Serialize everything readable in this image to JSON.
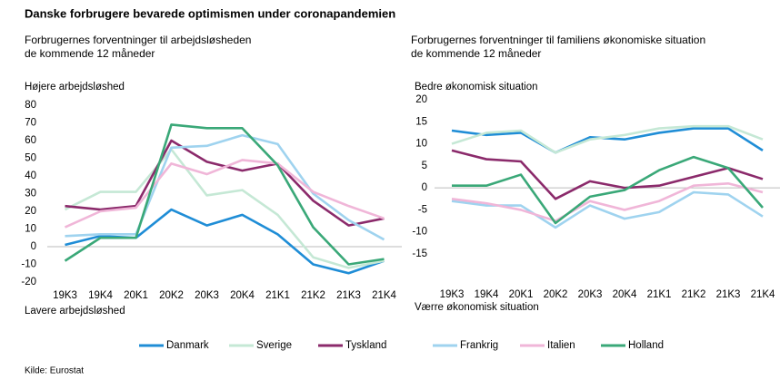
{
  "title": "Danske forbrugere bevarede optimismen under coronapandemien",
  "source": "Kilde: Eurostat",
  "chart_data": [
    {
      "type": "line",
      "title": [
        "Forbrugernes forventninger til arbejdsløsheden",
        "de kommende 12 måneder"
      ],
      "annotations": [
        "Højere arbejdsløshed",
        "Lavere arbejdsløshed"
      ],
      "categories": [
        "19K3",
        "19K4",
        "20K1",
        "20K2",
        "20K3",
        "20K4",
        "21K1",
        "21K2",
        "21K3",
        "21K4"
      ],
      "ylim": [
        -20,
        80
      ],
      "yticks": [
        -20,
        -10,
        0,
        10,
        20,
        30,
        40,
        50,
        60,
        70,
        80
      ],
      "series": [
        {
          "name": "Danmark",
          "color": "#1f8dd6",
          "values": [
            1,
            6,
            5,
            21,
            12,
            18,
            7,
            -10,
            -15,
            -8
          ]
        },
        {
          "name": "Sverige",
          "color": "#c5e8d5",
          "values": [
            21,
            31,
            31,
            55,
            29,
            32,
            18,
            -6,
            -12,
            -8
          ]
        },
        {
          "name": "Tyskland",
          "color": "#8b2a6b",
          "values": [
            23,
            21,
            23,
            60,
            48,
            43,
            47,
            26,
            12,
            16
          ]
        },
        {
          "name": "Frankrig",
          "color": "#9fd3ef",
          "values": [
            6,
            7,
            7,
            56,
            57,
            63,
            58,
            30,
            15,
            4
          ]
        },
        {
          "name": "Italien",
          "color": "#f0b6d8",
          "values": [
            11,
            20,
            22,
            47,
            41,
            49,
            47,
            31,
            23,
            16
          ]
        },
        {
          "name": "Holland",
          "color": "#3aa878",
          "values": [
            -8,
            5,
            5,
            69,
            67,
            67,
            46,
            11,
            -10,
            -7
          ]
        }
      ]
    },
    {
      "type": "line",
      "title": [
        "Forbrugernes forventninger til familiens økonomiske situation",
        "de kommende 12 måneder"
      ],
      "annotations": [
        "Bedre økonomisk situation",
        "Værre økonomisk situation"
      ],
      "categories": [
        "19K3",
        "19K4",
        "20K1",
        "20K2",
        "20K3",
        "20K4",
        "21K1",
        "21K2",
        "21K3",
        "21K4"
      ],
      "ylim": [
        -15,
        20
      ],
      "yticks": [
        -15,
        -10,
        -5,
        0,
        5,
        10,
        15,
        20
      ],
      "series": [
        {
          "color": "#1f8dd6",
          "values": [
            13,
            12,
            12.5,
            8,
            11.5,
            11,
            12.5,
            13.5,
            13.5,
            8.5
          ]
        },
        {
          "color": "#c5e8d5",
          "values": [
            10,
            12.5,
            13,
            8,
            11,
            12,
            13.5,
            14,
            14,
            11
          ]
        },
        {
          "color": "#8b2a6b",
          "values": [
            8.5,
            6.5,
            6,
            -2.5,
            1.5,
            0,
            0.5,
            2.5,
            4.5,
            2
          ]
        },
        {
          "color": "#9fd3ef",
          "values": [
            -3,
            -4,
            -4,
            -9,
            -4,
            -7,
            -5.5,
            -1,
            -1.5,
            -6.5
          ]
        },
        {
          "color": "#f0b6d8",
          "values": [
            -2.5,
            -3.5,
            -5,
            -7.5,
            -3,
            -5,
            -3,
            0.5,
            1,
            -1
          ]
        },
        {
          "color": "#3aa878",
          "values": [
            0.5,
            0.5,
            3,
            -8,
            -2,
            -0.5,
            4,
            7,
            4.5,
            -4.5
          ]
        }
      ]
    }
  ]
}
